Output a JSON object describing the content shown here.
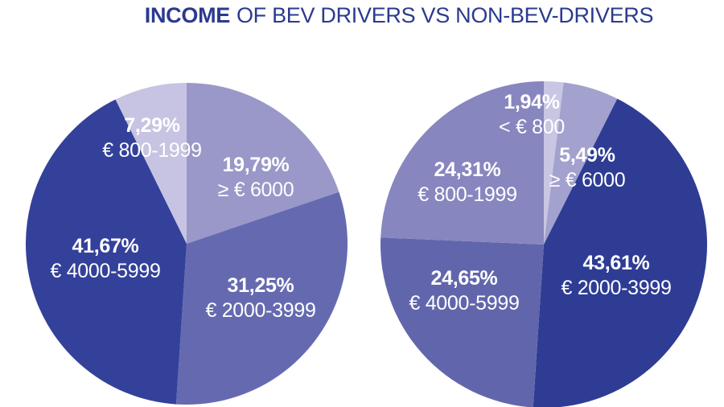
{
  "title": {
    "emphasis": "INCOME",
    "rest": "OF BEV DRIVERS VS NON-BEV-DRIVERS"
  },
  "colors": {
    "background": "#ffffff",
    "title_text": "#2b3a8f",
    "label_text": "#ffffff",
    "dark_navy_left": "#34419a",
    "dark_navy_right": "#2e3c94",
    "medium_purple_left": "#656ab0",
    "medium_purple_right": "#6166ac",
    "mid_light_purple": "#8886bf",
    "light_purple_left": "#9a98c8",
    "light_purple_right": "#a3a1ce",
    "lavender": "#c6c4e2"
  },
  "chart_data": [
    {
      "type": "pie",
      "group": "BEV drivers",
      "start_angle": "12-oclock",
      "direction": "clockwise",
      "legend": "none",
      "label_style": "inside",
      "value_format": "percent, comma decimal separator",
      "slices": [
        {
          "id": "gte-6000",
          "value": 19.79,
          "pct_label": "19,79%",
          "range_label": "≥ € 6000",
          "color": "#9a98c8"
        },
        {
          "id": "2000-3999",
          "value": 31.25,
          "pct_label": "31,25%",
          "range_label": "€ 2000-3999",
          "color": "#656ab0"
        },
        {
          "id": "4000-5999",
          "value": 41.67,
          "pct_label": "41,67%",
          "range_label": "€ 4000-5999",
          "color": "#34419a"
        },
        {
          "id": "800-1999",
          "value": 7.29,
          "pct_label": "7,29%",
          "range_label": "€ 800-1999",
          "color": "#c6c4e2"
        }
      ]
    },
    {
      "type": "pie",
      "group": "non-BEV drivers",
      "start_angle": "12-oclock",
      "direction": "clockwise",
      "legend": "none",
      "label_style": "inside",
      "value_format": "percent, comma decimal separator",
      "slices": [
        {
          "id": "lt-800",
          "value": 1.94,
          "pct_label": "1,94%",
          "range_label": "< € 800",
          "color": "#c8c6e3"
        },
        {
          "id": "gte-6000",
          "value": 5.49,
          "pct_label": "5,49%",
          "range_label": "≥ € 6000",
          "color": "#a3a1ce"
        },
        {
          "id": "2000-3999",
          "value": 43.61,
          "pct_label": "43,61%",
          "range_label": "€ 2000-3999",
          "color": "#2e3c94"
        },
        {
          "id": "4000-5999",
          "value": 24.65,
          "pct_label": "24,65%",
          "range_label": "€ 4000-5999",
          "color": "#6166ac"
        },
        {
          "id": "800-1999",
          "value": 24.31,
          "pct_label": "24,31%",
          "range_label": "€ 800-1999",
          "color": "#8886bf"
        }
      ]
    }
  ]
}
